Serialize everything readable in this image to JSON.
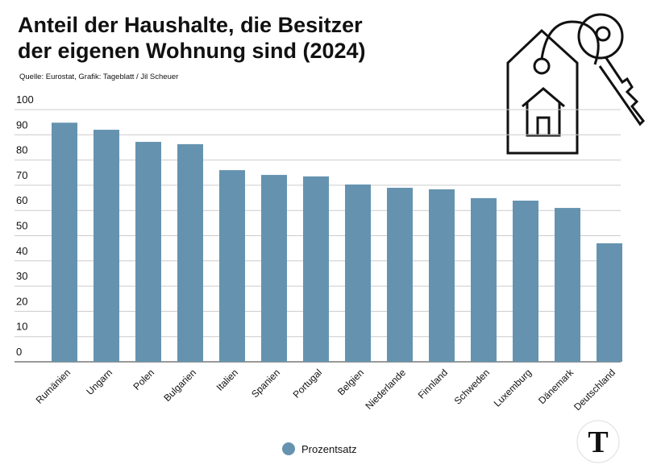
{
  "chart_data": {
    "type": "bar",
    "title": "Anteil der Haushalte, die Besitzer der eigenen Wohnung sind (2024)",
    "subtitle": "Quelle: Eurostat, Grafik: Tageblatt / Jil Scheuer",
    "categories": [
      "Rumänien",
      "Ungarn",
      "Polen",
      "Bulgarien",
      "Italien",
      "Spanien",
      "Portugal",
      "Belgien",
      "Niederlande",
      "Finnland",
      "Schweden",
      "Luxemburg",
      "Dänemark",
      "Deutschland"
    ],
    "series": [
      {
        "name": "Prozentsatz",
        "color": "#6593af",
        "values": [
          94.8,
          92.0,
          87.2,
          86.3,
          76.0,
          74.1,
          73.5,
          70.3,
          69.0,
          68.4,
          64.9,
          63.9,
          61.0,
          47.0
        ]
      }
    ],
    "ylim": [
      0,
      100
    ],
    "yticks": [
      0,
      10,
      20,
      30,
      40,
      50,
      60,
      70,
      80,
      90,
      100
    ],
    "grid": true,
    "legend": "bottom",
    "logo": "T"
  }
}
